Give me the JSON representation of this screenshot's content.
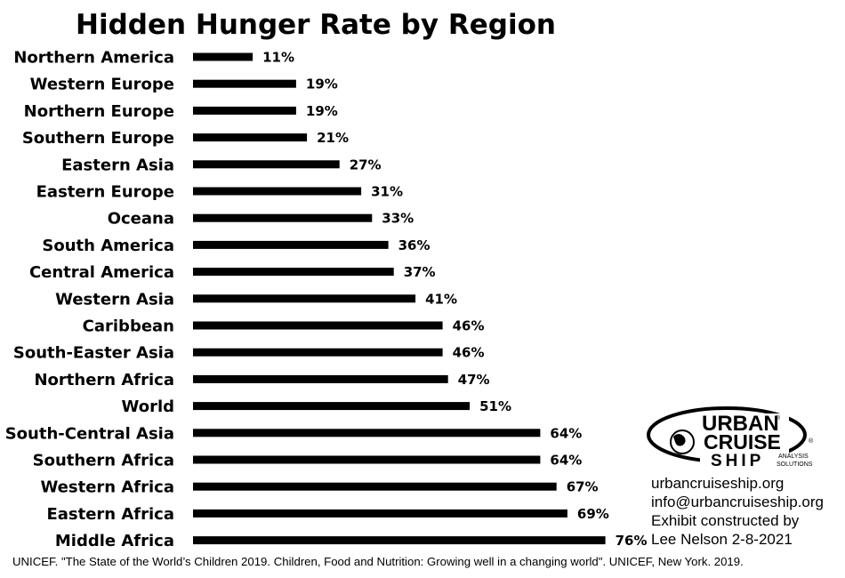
{
  "chart_data": {
    "type": "bar",
    "orientation": "horizontal",
    "title": "Hidden Hunger Rate by Region",
    "categories": [
      "Northern America",
      "Western Europe",
      "Northern Europe",
      "Southern Europe",
      "Eastern Asia",
      "Eastern Europe",
      "Oceana",
      "South America",
      "Central America",
      "Western Asia",
      "Caribbean",
      "South-Easter Asia",
      "Northern Africa",
      "World",
      "South-Central Asia",
      "Southern Africa",
      "Western Africa",
      "Eastern Africa",
      "Middle Africa"
    ],
    "values": [
      11,
      19,
      19,
      21,
      27,
      31,
      33,
      36,
      37,
      41,
      46,
      46,
      47,
      51,
      64,
      64,
      67,
      69,
      76
    ],
    "value_labels": [
      "11%",
      "19%",
      "19%",
      "21%",
      "27%",
      "31%",
      "33%",
      "36%",
      "37%",
      "41%",
      "46%",
      "46%",
      "47%",
      "51%",
      "64%",
      "64%",
      "67%",
      "69%",
      "76%"
    ],
    "xlim": [
      0,
      76
    ],
    "grid": false,
    "bar_color": "#000000"
  },
  "logo": {
    "line1": "URBAN",
    "line2": "CRUISE",
    "line3": "SHIP",
    "tag1": "ANALYSIS",
    "tag2": "SOLUTIONS",
    "mark": "®"
  },
  "info": {
    "website": "urbancruiseship.org",
    "email": "info@urbancruiseship.org",
    "credit_line1": "Exhibit constructed by",
    "credit_line2": "Lee Nelson 2-8-2021"
  },
  "source": "UNICEF. \"The State of the World’s Children 2019. Children, Food and Nutrition: Growing well in a changing world\". UNICEF, New York. 2019."
}
